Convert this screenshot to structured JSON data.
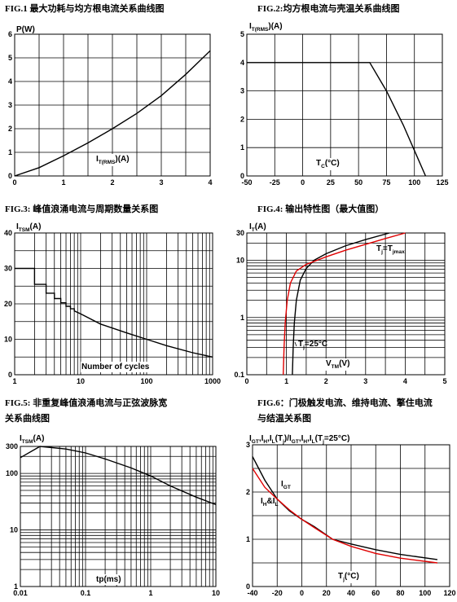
{
  "chart_data": [
    {
      "id": "fig1",
      "type": "line",
      "title": "FIG.1 最大功耗与均方根电流关系曲线图",
      "ylabel": "P(W)",
      "xlabel": "I_T(RMS)(A)",
      "xlim": [
        0,
        4
      ],
      "ylim": [
        0,
        6
      ],
      "x_scale": "linear",
      "y_scale": "linear",
      "xticks": [
        "0",
        "1",
        "2",
        "3",
        "4"
      ],
      "yticks": [
        "0",
        "1",
        "2",
        "3",
        "4",
        "5",
        "6"
      ],
      "grid": true,
      "series": [
        {
          "color": "#000000",
          "x": [
            0,
            0.5,
            1.0,
            1.5,
            2.0,
            2.5,
            3.0,
            3.5,
            4.0
          ],
          "y": [
            0,
            0.35,
            0.85,
            1.4,
            2.0,
            2.65,
            3.4,
            4.3,
            5.3
          ]
        }
      ]
    },
    {
      "id": "fig2",
      "type": "line",
      "title": "FIG.2:均方根电流与壳温关系曲线图",
      "ylabel": "I_T(RMS)(A)",
      "xlabel": "T_C(°C)",
      "xlim": [
        -50,
        125
      ],
      "ylim": [
        0,
        5
      ],
      "x_scale": "linear",
      "y_scale": "linear",
      "xticks": [
        "-50",
        "-25",
        "0",
        "25",
        "50",
        "75",
        "100",
        "125"
      ],
      "yticks": [
        "0",
        "1",
        "2",
        "3",
        "4",
        "5"
      ],
      "grid": true,
      "series": [
        {
          "color": "#000000",
          "x": [
            -50,
            60,
            75,
            90,
            100,
            110
          ],
          "y": [
            4,
            4,
            3.0,
            1.8,
            0.9,
            0
          ]
        }
      ]
    },
    {
      "id": "fig3",
      "type": "line",
      "title": "FIG.3: 峰值浪涌电流与周期数量关系图",
      "ylabel": "I_TSM(A)",
      "xlabel": "Number of cycles",
      "xlim": [
        1,
        1000
      ],
      "ylim": [
        0,
        40
      ],
      "x_scale": "log",
      "y_scale": "linear",
      "xticks": [
        "1",
        "10",
        "100",
        "1000"
      ],
      "yticks": [
        "0",
        "10",
        "20",
        "30",
        "40"
      ],
      "grid": true,
      "series": [
        {
          "color": "#000000",
          "x": [
            1,
            2,
            2,
            3,
            3,
            4,
            4,
            5,
            5,
            6,
            6,
            7,
            7,
            8,
            8,
            10,
            20,
            50,
            100,
            200,
            500,
            1000
          ],
          "y": [
            30,
            30,
            25.5,
            25.5,
            23,
            23,
            21.5,
            21.5,
            20.3,
            20.3,
            19.3,
            19.3,
            18.6,
            18.6,
            18,
            17.2,
            14.3,
            11.8,
            10.0,
            8.2,
            6.2,
            5.0
          ]
        }
      ]
    },
    {
      "id": "fig4",
      "type": "line",
      "title": "FIG.4: 输出特性图（最大值图）",
      "ylabel": "I_T(A)",
      "xlabel": "V_TM(V)",
      "xlim": [
        0,
        5
      ],
      "ylim": [
        0.1,
        30
      ],
      "x_scale": "linear",
      "y_scale": "log",
      "xticks": [
        "0",
        "1",
        "2",
        "3",
        "4",
        "5"
      ],
      "yticks": [
        "0.1",
        "1",
        "10",
        "30"
      ],
      "grid": true,
      "annotations": [
        "T_j=T_jmax",
        "T_j=25°C"
      ],
      "series": [
        {
          "name": "T_j=25°C",
          "color": "#000000",
          "x": [
            1.15,
            1.17,
            1.2,
            1.25,
            1.35,
            1.5,
            1.7,
            2.0,
            2.5,
            3.0,
            3.6
          ],
          "y": [
            0.1,
            0.3,
            0.8,
            2.0,
            4.5,
            7.2,
            10.0,
            13.0,
            18.0,
            23.0,
            30.0
          ]
        },
        {
          "name": "T_j=T_jmax",
          "color": "#e00000",
          "x": [
            0.92,
            0.94,
            0.97,
            1.02,
            1.1,
            1.25,
            1.5,
            2.0,
            2.5,
            3.0,
            3.5,
            4.0
          ],
          "y": [
            0.1,
            0.3,
            0.8,
            2.0,
            4.0,
            6.5,
            8.5,
            11.5,
            15.0,
            19.0,
            24.0,
            30.0
          ]
        }
      ]
    },
    {
      "id": "fig5",
      "type": "line",
      "title": "FIG.5: 非重复峰值浪涌电流与正弦波脉宽关系曲线图",
      "ylabel": "I_TSM(A)",
      "xlabel": "tp(ms)",
      "xlim": [
        0.01,
        10
      ],
      "ylim": [
        1,
        300
      ],
      "x_scale": "log",
      "y_scale": "log",
      "xticks": [
        "0.01",
        "0.1",
        "1",
        "10"
      ],
      "yticks": [
        "1",
        "10",
        "100",
        "300"
      ],
      "grid": true,
      "series": [
        {
          "color": "#000000",
          "x": [
            0.01,
            0.02,
            0.05,
            0.1,
            0.2,
            0.5,
            1,
            2,
            5,
            10
          ],
          "y": [
            190,
            300,
            270,
            230,
            180,
            125,
            90,
            60,
            38,
            28
          ]
        }
      ]
    },
    {
      "id": "fig6",
      "type": "line",
      "title": "FIG.6：门极触发电流、维持电流、擎住电流与结温关系图",
      "ylabel": "I_GT,I_H,I_L(T_j)/I_GT,I_H,I_L(T_j=25°C)",
      "xlabel": "T_j(°C)",
      "xlim": [
        -40,
        120
      ],
      "ylim": [
        0,
        3
      ],
      "x_scale": "linear",
      "y_scale": "linear",
      "xticks": [
        "-40",
        "-20",
        "0",
        "20",
        "40",
        "60",
        "80",
        "100",
        "120"
      ],
      "yticks": [
        "0",
        "1",
        "2",
        "3"
      ],
      "grid": true,
      "series": [
        {
          "name": "I_GT",
          "color": "#000000",
          "x": [
            -40,
            -30,
            -20,
            -10,
            0,
            10,
            25,
            40,
            60,
            80,
            110
          ],
          "y": [
            2.75,
            2.25,
            1.85,
            1.6,
            1.42,
            1.27,
            1.0,
            0.9,
            0.78,
            0.68,
            0.57
          ]
        },
        {
          "name": "I_H&I_L",
          "color": "#e00000",
          "x": [
            -40,
            -30,
            -20,
            -10,
            0,
            10,
            25,
            40,
            60,
            80,
            110
          ],
          "y": [
            2.5,
            2.1,
            1.85,
            1.62,
            1.42,
            1.25,
            1.0,
            0.85,
            0.7,
            0.6,
            0.5
          ]
        }
      ]
    }
  ]
}
